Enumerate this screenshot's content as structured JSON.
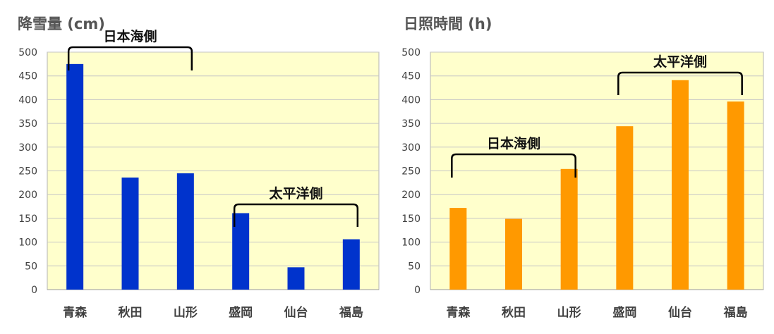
{
  "chart_data": [
    {
      "type": "bar",
      "title": "降雪量 (cm)",
      "categories": [
        "青森",
        "秋田",
        "山形",
        "盛岡",
        "仙台",
        "福島"
      ],
      "values": [
        475,
        236,
        245,
        161,
        47,
        106
      ],
      "ylim": [
        0,
        500
      ],
      "yticks": [
        0,
        50,
        100,
        150,
        200,
        250,
        300,
        350,
        400,
        450,
        500
      ],
      "bar_color": "#0033cc",
      "plot_background": "#ffffcc",
      "grid": true,
      "annotations": [
        {
          "text": "日本海側",
          "categories": [
            "青森",
            "山形"
          ]
        },
        {
          "text": "太平洋側",
          "categories": [
            "盛岡",
            "福島"
          ]
        }
      ]
    },
    {
      "type": "bar",
      "title": "日照時間 (h)",
      "categories": [
        "青森",
        "秋田",
        "山形",
        "盛岡",
        "仙台",
        "福島"
      ],
      "values": [
        172,
        149,
        254,
        344,
        441,
        396
      ],
      "ylim": [
        0,
        500
      ],
      "yticks": [
        0,
        50,
        100,
        150,
        200,
        250,
        300,
        350,
        400,
        450,
        500
      ],
      "bar_color": "#ff9900",
      "plot_background": "#ffffcc",
      "grid": true,
      "annotations": [
        {
          "text": "日本海側",
          "categories": [
            "青森",
            "山形"
          ]
        },
        {
          "text": "太平洋側",
          "categories": [
            "盛岡",
            "福島"
          ]
        }
      ]
    }
  ]
}
